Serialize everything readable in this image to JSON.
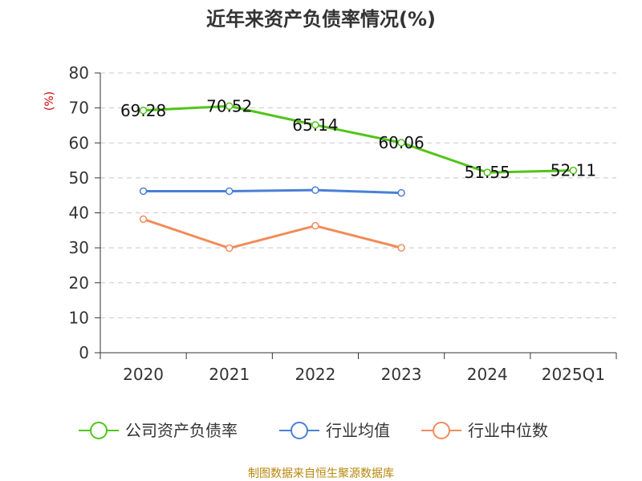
{
  "chart_data": {
    "type": "line",
    "title": "近年来资产负债率情况(%)",
    "ylabel": "(%)",
    "xlabel": "",
    "categories": [
      "2020",
      "2021",
      "2022",
      "2023",
      "2024",
      "2025Q1"
    ],
    "ylim": [
      0,
      80
    ],
    "yticks": [
      0,
      10,
      20,
      30,
      40,
      50,
      60,
      70,
      80
    ],
    "grid": true,
    "legend_position": "bottom",
    "series": [
      {
        "name": "公司资产负债率",
        "color": "#52c41a",
        "values": [
          69.28,
          70.52,
          65.14,
          60.06,
          51.55,
          52.11
        ],
        "labels": [
          "69.28",
          "70.52",
          "65.14",
          "60.06",
          "51.55",
          "52.11"
        ]
      },
      {
        "name": "行业均值",
        "color": "#4a7fd6",
        "values": [
          46.2,
          46.2,
          46.5,
          45.7,
          null,
          null
        ]
      },
      {
        "name": "行业中位数",
        "color": "#f08c5a",
        "values": [
          38.2,
          29.9,
          36.3,
          30.0,
          null,
          null
        ]
      }
    ],
    "source": "制图数据来自恒生聚源数据库"
  }
}
